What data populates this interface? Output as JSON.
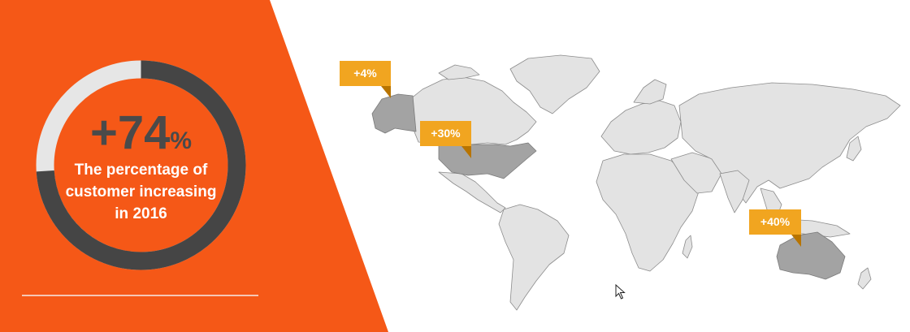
{
  "stat": {
    "value": "+74",
    "unit": "%",
    "caption": "The percentage of\ncustomer  increasing\nin 2016",
    "progress_fraction": 0.74
  },
  "callouts": [
    {
      "id": "alaska",
      "label": "+4%"
    },
    {
      "id": "usa",
      "label": "+30%"
    },
    {
      "id": "australia",
      "label": "+40%"
    }
  ],
  "colors": {
    "accent_orange": "#f55817",
    "ring_dark": "#454545",
    "ring_light": "#e6e6e6",
    "callout_gold": "#f1a520",
    "land": "#e3e3e3",
    "land_highlight": "#a3a3a3",
    "border": "#8c8c8c"
  }
}
